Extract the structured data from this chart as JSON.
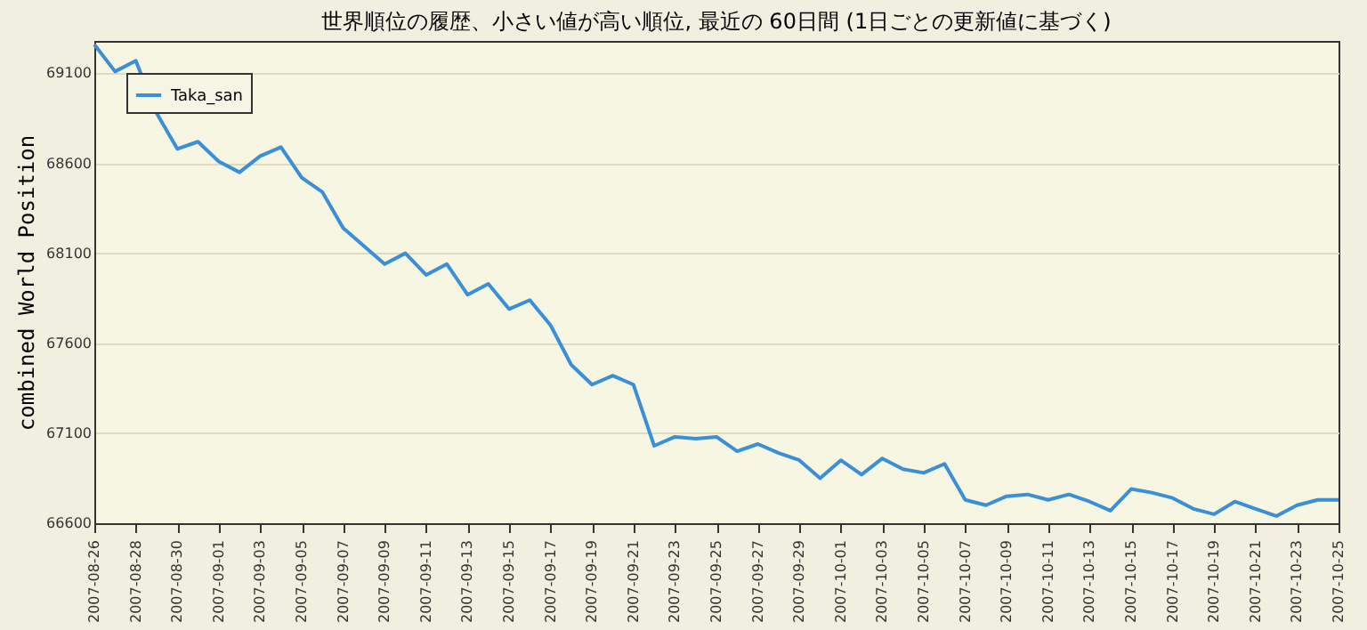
{
  "chart_data": {
    "type": "line",
    "title": "世界順位の履歴、小さい値が高い順位, 最近の 60日間 (1日ごとの更新値に基づく)",
    "ylabel": "combined World Position",
    "x": [
      "2007-08-26",
      "2007-08-27",
      "2007-08-28",
      "2007-08-29",
      "2007-08-30",
      "2007-08-31",
      "2007-09-01",
      "2007-09-02",
      "2007-09-03",
      "2007-09-04",
      "2007-09-05",
      "2007-09-06",
      "2007-09-07",
      "2007-09-08",
      "2007-09-09",
      "2007-09-10",
      "2007-09-11",
      "2007-09-12",
      "2007-09-13",
      "2007-09-14",
      "2007-09-15",
      "2007-09-16",
      "2007-09-17",
      "2007-09-18",
      "2007-09-19",
      "2007-09-20",
      "2007-09-21",
      "2007-09-22",
      "2007-09-23",
      "2007-09-24",
      "2007-09-25",
      "2007-09-26",
      "2007-09-27",
      "2007-09-28",
      "2007-09-29",
      "2007-09-30",
      "2007-10-01",
      "2007-10-02",
      "2007-10-03",
      "2007-10-04",
      "2007-10-05",
      "2007-10-06",
      "2007-10-07",
      "2007-10-08",
      "2007-10-09",
      "2007-10-10",
      "2007-10-11",
      "2007-10-12",
      "2007-10-13",
      "2007-10-14",
      "2007-10-15",
      "2007-10-16",
      "2007-10-17",
      "2007-10-18",
      "2007-10-19",
      "2007-10-20",
      "2007-10-21",
      "2007-10-22",
      "2007-10-23",
      "2007-10-24",
      "2007-10-25"
    ],
    "series": [
      {
        "name": "Taka_san",
        "color": "#3a8fd6",
        "values": [
          69260,
          69110,
          69170,
          68880,
          68680,
          68720,
          68610,
          68550,
          68640,
          68690,
          68520,
          68440,
          68240,
          68140,
          68040,
          68100,
          67980,
          68040,
          67870,
          67930,
          67790,
          67840,
          67700,
          67480,
          67370,
          67420,
          67370,
          67030,
          67080,
          67070,
          67080,
          67000,
          67040,
          66990,
          66950,
          66850,
          66950,
          66870,
          66960,
          66900,
          66880,
          66930,
          66730,
          66700,
          66750,
          66760,
          66730,
          66760,
          66720,
          66670,
          66790,
          66770,
          66740,
          66680,
          66650,
          66720,
          66680,
          66640,
          66700,
          66730,
          66730
        ]
      }
    ],
    "xlim": [
      "2007-08-26",
      "2007-10-25"
    ],
    "xticks": [
      "2007-08-26",
      "2007-08-28",
      "2007-08-30",
      "2007-09-01",
      "2007-09-03",
      "2007-09-05",
      "2007-09-07",
      "2007-09-09",
      "2007-09-11",
      "2007-09-13",
      "2007-09-15",
      "2007-09-17",
      "2007-09-19",
      "2007-09-21",
      "2007-09-23",
      "2007-09-25",
      "2007-09-27",
      "2007-09-29",
      "2007-10-01",
      "2007-10-03",
      "2007-10-05",
      "2007-10-07",
      "2007-10-09",
      "2007-10-11",
      "2007-10-13",
      "2007-10-15",
      "2007-10-17",
      "2007-10-19",
      "2007-10-21",
      "2007-10-23",
      "2007-10-25"
    ],
    "ylim": [
      66600,
      69280
    ],
    "yticks": [
      66600,
      67100,
      67600,
      68100,
      68600,
      69100
    ],
    "grid": "y",
    "legend": "top left",
    "marker": "none",
    "line_style": "solid"
  }
}
